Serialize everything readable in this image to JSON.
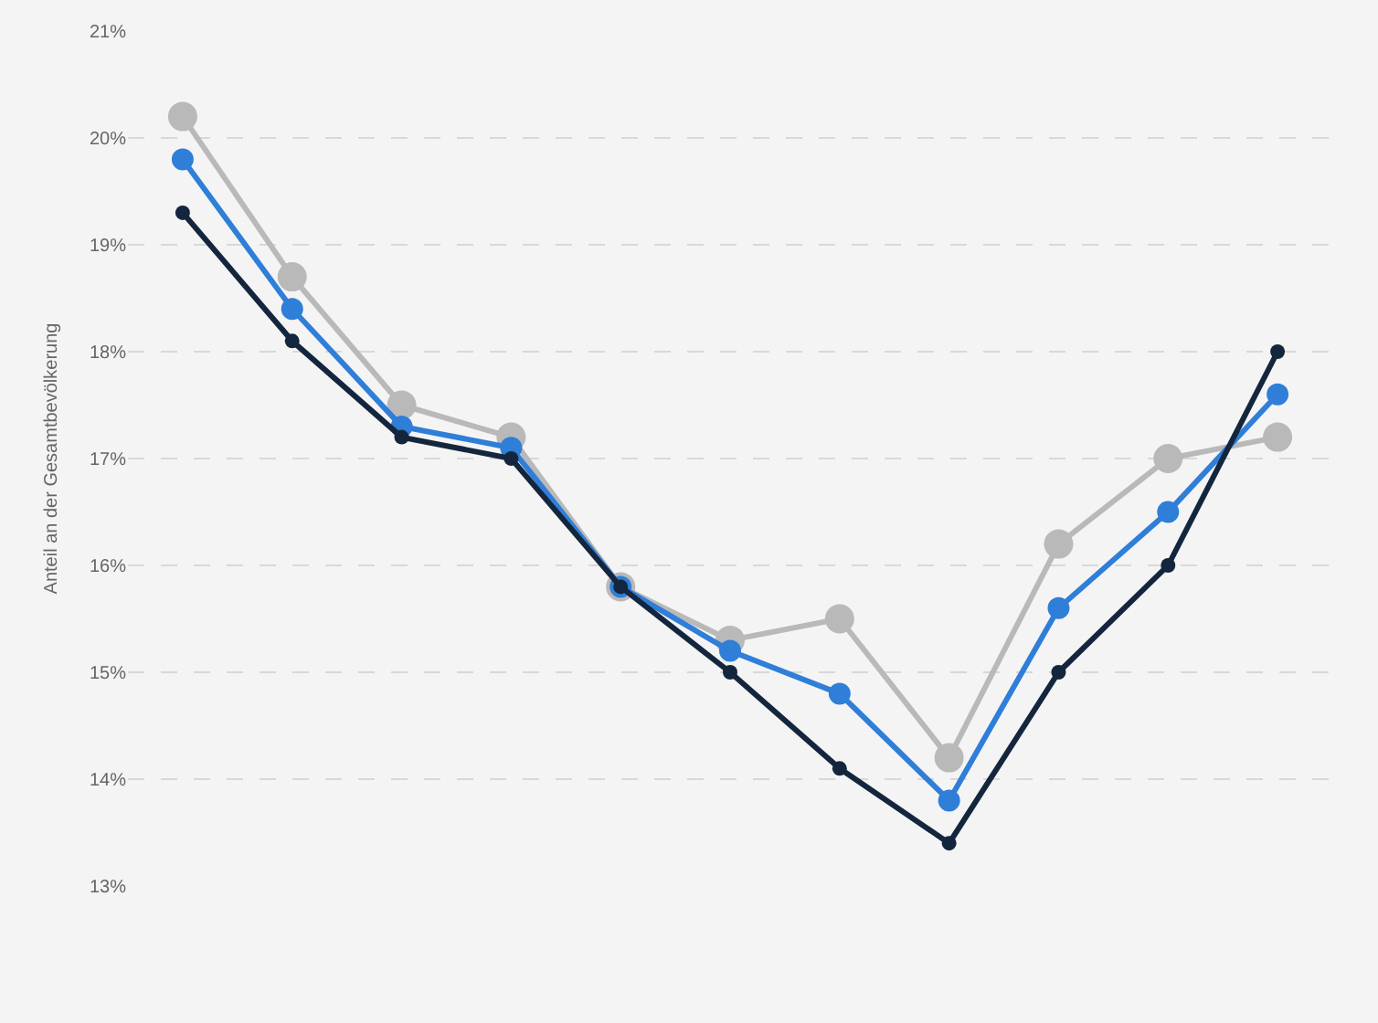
{
  "chart_data": {
    "type": "line",
    "ylabel": "Anteil an der Gesamtbevölkerung",
    "categories": [
      null,
      null,
      null,
      null,
      null,
      null,
      null,
      null,
      null,
      null,
      null
    ],
    "series": [
      {
        "color": "#b9b9b9",
        "values": [
          20.2,
          18.7,
          17.5,
          17.2,
          15.8,
          15.3,
          15.5,
          14.2,
          16.2,
          17.0,
          17.2
        ]
      },
      {
        "color": "#2f7ed8",
        "values": [
          19.8,
          18.4,
          17.3,
          17.1,
          15.8,
          15.2,
          14.8,
          13.8,
          15.6,
          16.5,
          17.6
        ]
      },
      {
        "color": "#14263d",
        "values": [
          19.3,
          18.1,
          17.2,
          17.0,
          15.8,
          15.0,
          14.1,
          13.4,
          15.0,
          16.0,
          18.0
        ]
      }
    ],
    "ylim": [
      13,
      21
    ],
    "yticks": [
      {
        "value": 13,
        "label": "13%"
      },
      {
        "value": 14,
        "label": "14%"
      },
      {
        "value": 15,
        "label": "15%"
      },
      {
        "value": 16,
        "label": "16%"
      },
      {
        "value": 17,
        "label": "17%"
      },
      {
        "value": 18,
        "label": "18%"
      },
      {
        "value": 19,
        "label": "19%"
      },
      {
        "value": 20,
        "label": "20%"
      },
      {
        "value": 21,
        "label": "21%"
      }
    ],
    "grid": "y",
    "legend": false,
    "marker": "circle",
    "line_style": "solid",
    "tick_labels": "y"
  }
}
